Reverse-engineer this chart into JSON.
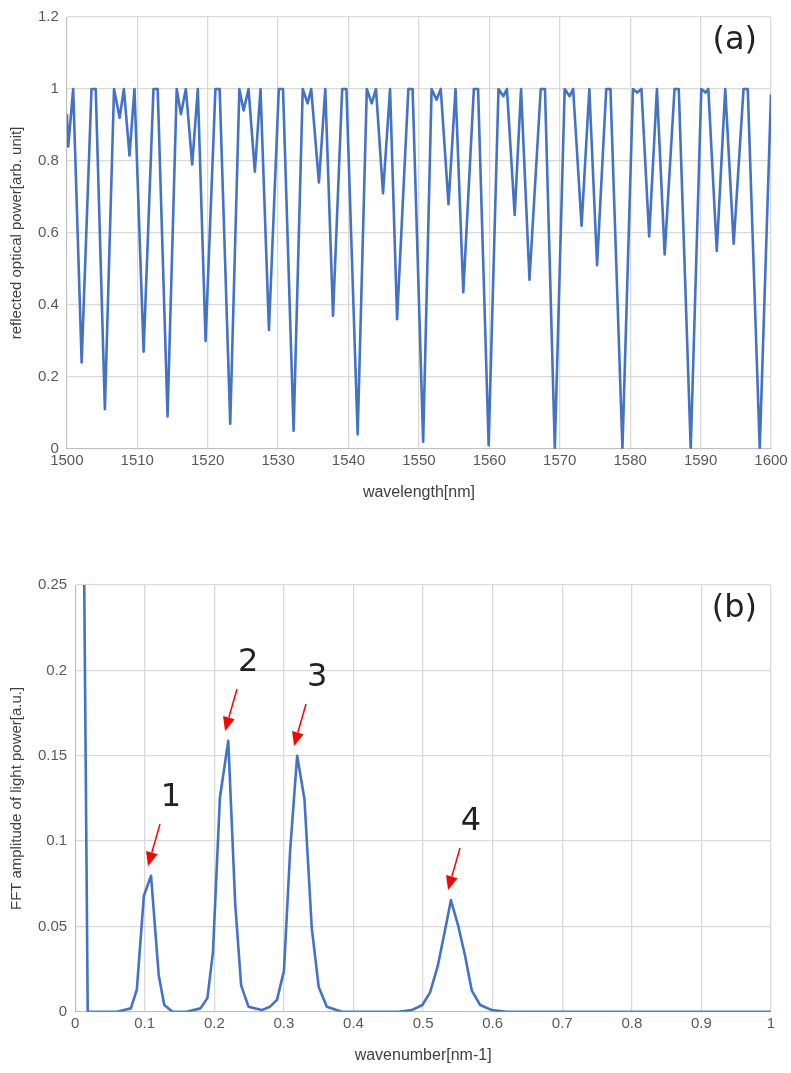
{
  "chart_data": [
    {
      "type": "line",
      "xlabel": "wavelength[nm]",
      "ylabel": "reflected optical power[arb. unit]",
      "xlim": [
        1500,
        1600
      ],
      "ylim": [
        0,
        1.2
      ],
      "xticks": [
        1500,
        1510,
        1520,
        1530,
        1540,
        1550,
        1560,
        1570,
        1580,
        1590,
        1600
      ],
      "yticks": [
        0,
        0.2,
        0.4,
        0.6,
        0.8,
        1,
        1.2
      ],
      "grid": true,
      "marker": "none",
      "annotations": [
        "(a)"
      ],
      "x": [
        1500,
        1500.2,
        1500.9,
        1502.1,
        1503.5,
        1504.1,
        1505.4,
        1506.7,
        1507.5,
        1508.1,
        1508.9,
        1509.6,
        1510.9,
        1512.3,
        1512.9,
        1514.3,
        1515.6,
        1516.2,
        1516.9,
        1517.8,
        1518.6,
        1519.7,
        1521.1,
        1521.7,
        1523.2,
        1524.5,
        1525.1,
        1525.8,
        1526.7,
        1527.5,
        1528.7,
        1530.1,
        1530.7,
        1532.2,
        1533.5,
        1534.2,
        1534.7,
        1535.8,
        1536.7,
        1537.8,
        1539.1,
        1539.7,
        1541.3,
        1542.6,
        1543.3,
        1543.9,
        1544.9,
        1545.9,
        1546.9,
        1548.5,
        1549.1,
        1550.6,
        1551.8,
        1552.5,
        1553.1,
        1554.2,
        1555.2,
        1556.3,
        1557.8,
        1558.4,
        1559.9,
        1561.3,
        1562,
        1562.5,
        1563.6,
        1564.5,
        1565.7,
        1567.3,
        1567.9,
        1569.3,
        1570.7,
        1571.4,
        1571.9,
        1573.1,
        1574.2,
        1575.3,
        1576.6,
        1577.2,
        1578.9,
        1580.4,
        1581,
        1581.6,
        1582.7,
        1583.8,
        1584.9,
        1586.3,
        1586.9,
        1588.6,
        1590.1,
        1590.7,
        1591.1,
        1592.3,
        1593.5,
        1594.7,
        1596.1,
        1596.7,
        1598.4,
        1600
      ],
      "series": [
        {
          "color": "#4472c4",
          "values": [
            0.93,
            0.84,
            1,
            0.24,
            1,
            1,
            0.11,
            1,
            0.92,
            1,
            0.815,
            1,
            0.27,
            1,
            1,
            0.09,
            1,
            0.93,
            1,
            0.79,
            1,
            0.3,
            1,
            1,
            0.07,
            1,
            0.94,
            1,
            0.77,
            1,
            0.33,
            1,
            1,
            0.05,
            1,
            0.96,
            1,
            0.74,
            1,
            0.37,
            1,
            1,
            0.04,
            1,
            0.96,
            1,
            0.71,
            1,
            0.36,
            1,
            1,
            0.02,
            1,
            0.97,
            1,
            0.68,
            1,
            0.435,
            1,
            1,
            0.01,
            1,
            0.98,
            1,
            0.65,
            1,
            0.47,
            1,
            1,
            0,
            1,
            0.98,
            1,
            0.62,
            1,
            0.51,
            1,
            1,
            0,
            1,
            0.99,
            1,
            0.59,
            1,
            0.54,
            1,
            1,
            0,
            1,
            0.99,
            1,
            0.55,
            1,
            0.57,
            1,
            1,
            0,
            0.985
          ]
        }
      ]
    },
    {
      "type": "line",
      "xlabel": "wavenumber[nm-1]",
      "ylabel": "FFT amplitude of light power[a.u.]",
      "xlim": [
        0,
        1
      ],
      "ylim": [
        0,
        0.25
      ],
      "xticks": [
        0,
        0.1,
        0.2,
        0.3,
        0.4,
        0.5,
        0.6,
        0.7,
        0.8,
        0.9,
        1
      ],
      "yticks": [
        0,
        0.05,
        0.1,
        0.15,
        0.2,
        0.25
      ],
      "grid": true,
      "marker": "none",
      "annotations": [
        "(b)",
        {
          "text": "1",
          "x": 0.109,
          "y": 0.0797
        },
        {
          "text": "2",
          "x": 0.22,
          "y": 0.1587
        },
        {
          "text": "3",
          "x": 0.319,
          "y": 0.15
        },
        {
          "text": "4",
          "x": 0.54,
          "y": 0.0654
        }
      ],
      "x": [
        0.013,
        0.018,
        0.06,
        0.08,
        0.0886,
        0.0987,
        0.109,
        0.12,
        0.128,
        0.14,
        0.16,
        0.18,
        0.19,
        0.198,
        0.208,
        0.22,
        0.23,
        0.2385,
        0.249,
        0.268,
        0.28,
        0.29,
        0.3,
        0.309,
        0.319,
        0.3295,
        0.34,
        0.35,
        0.3616,
        0.383,
        0.4646,
        0.4837,
        0.499,
        0.51,
        0.521,
        0.5306,
        0.54,
        0.5507,
        0.5603,
        0.57,
        0.582,
        0.599,
        0.62,
        1
      ],
      "series": [
        {
          "color": "#4472c4",
          "values": [
            0.25,
            0,
            0,
            0.002,
            0.013,
            0.068,
            0.0797,
            0.0216,
            0.004,
            0,
            0,
            0.002,
            0.008,
            0.035,
            0.1255,
            0.1587,
            0.063,
            0.0155,
            0.003,
            0.001,
            0.003,
            0.007,
            0.024,
            0.095,
            0.15,
            0.1245,
            0.049,
            0.0145,
            0.003,
            0,
            0,
            0.001,
            0.004,
            0.0114,
            0.0267,
            0.046,
            0.0654,
            0.05,
            0.0328,
            0.0124,
            0.004,
            0.001,
            0,
            0
          ]
        }
      ]
    }
  ]
}
